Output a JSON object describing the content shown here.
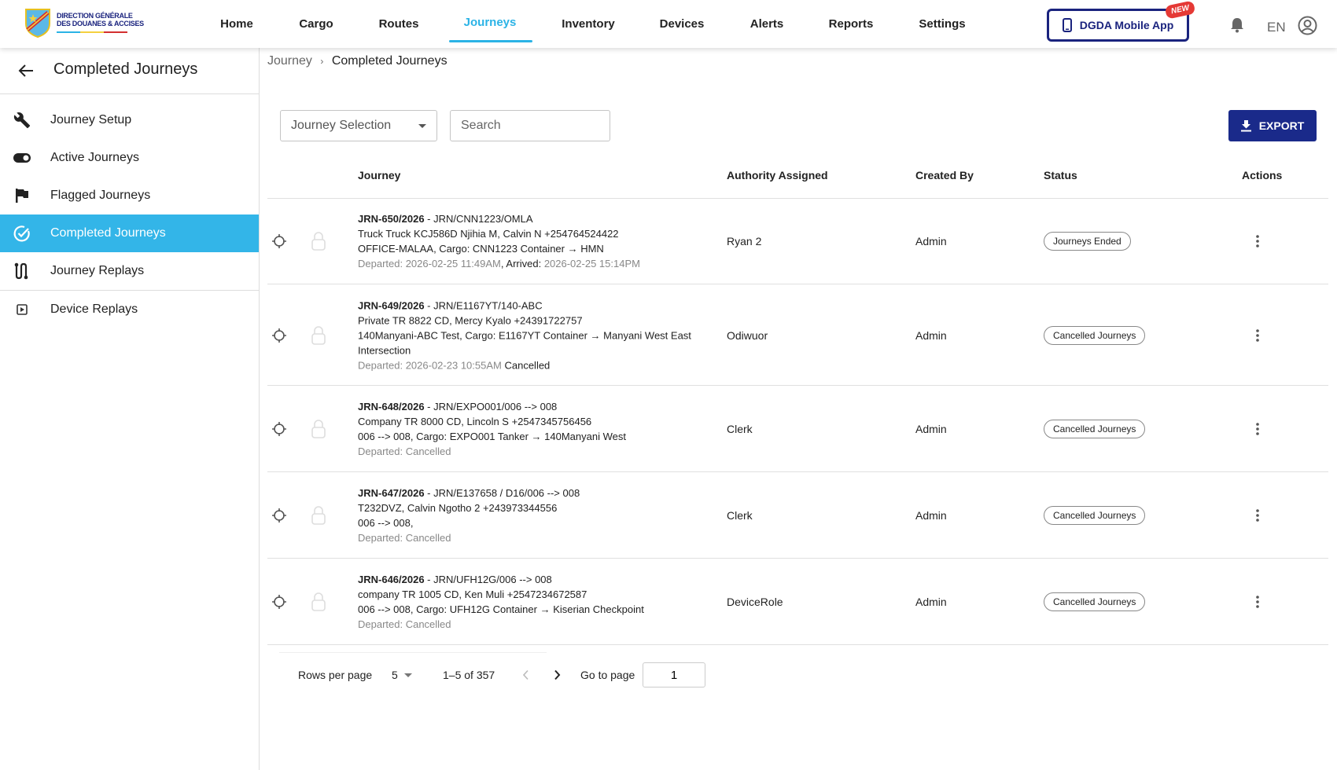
{
  "header": {
    "logo": {
      "line1": "DIRECTION GÉNÉRALE",
      "line2": "DES DOUANES & ACCISES"
    },
    "nav": [
      {
        "label": "Home"
      },
      {
        "label": "Cargo"
      },
      {
        "label": "Routes"
      },
      {
        "label": "Journeys",
        "active": true
      },
      {
        "label": "Inventory"
      },
      {
        "label": "Devices"
      },
      {
        "label": "Alerts"
      },
      {
        "label": "Reports"
      },
      {
        "label": "Settings"
      }
    ],
    "mobile_app_label": "DGDA Mobile App",
    "new_badge": "NEW",
    "language": "EN",
    "accent": "#2bb3e6",
    "brand": "#1a237e"
  },
  "sidebar": {
    "title": "Completed Journeys",
    "items": [
      {
        "label": "Journey Setup",
        "icon": "wrench-icon"
      },
      {
        "label": "Active Journeys",
        "icon": "toggle-icon"
      },
      {
        "label": "Flagged Journeys",
        "icon": "flag-icon"
      },
      {
        "label": "Completed Journeys",
        "icon": "check-circle-icon",
        "active": true
      },
      {
        "label": "Journey Replays",
        "icon": "route-icon"
      },
      {
        "label": "Device Replays",
        "icon": "play-box-icon"
      }
    ]
  },
  "breadcrumb": {
    "parent": "Journey",
    "sep": "›",
    "current": "Completed Journeys"
  },
  "filters": {
    "selection": "Journey Selection",
    "search_placeholder": "Search",
    "export": "EXPORT"
  },
  "table": {
    "columns": {
      "journey": "Journey",
      "authority": "Authority Assigned",
      "created": "Created By",
      "status": "Status",
      "actions": "Actions"
    },
    "rows": [
      {
        "id": "JRN-650/2026",
        "ref": " - JRN/CNN1223/OMLA",
        "line2": "Truck Truck KCJ586D Njihia M, Calvin N +254764524422",
        "line3": "OFFICE-MALAA, Cargo: CNN1223 Container → HMN",
        "dep_label": "Departed: ",
        "dep": "2026-02-25 11:49AM",
        "arr_label": ", Arrived: ",
        "arr": "2026-02-25 15:14PM",
        "authority": "Ryan 2",
        "created": "Admin",
        "status": "Journeys Ended"
      },
      {
        "id": "JRN-649/2026",
        "ref": " - JRN/E1167YT/140-ABC",
        "line2": "Private TR 8822 CD, Mercy Kyalo +24391722757",
        "line3": "140Manyani-ABC Test, Cargo: E1167YT Container → Manyani West East Intersection",
        "dep_label": "Departed: ",
        "dep": "2026-02-23 10:55AM",
        "arr_label": " Cancelled",
        "arr": "",
        "authority": "Odiwuor",
        "created": "Admin",
        "status": "Cancelled Journeys"
      },
      {
        "id": "JRN-648/2026",
        "ref": " - JRN/EXPO001/006 --> 008",
        "line2": "Company TR 8000 CD, Lincoln S +2547345756456",
        "line3": "006 --> 008, Cargo: EXPO001 Tanker → 140Manyani West",
        "dep_label": "Departed: Cancelled",
        "dep": "",
        "arr_label": "",
        "arr": "",
        "authority": "Clerk",
        "created": "Admin",
        "status": "Cancelled Journeys"
      },
      {
        "id": "JRN-647/2026",
        "ref": " - JRN/E137658 / D16/006 --> 008",
        "line2": "T232DVZ, Calvin Ngotho 2 +243973344556",
        "line3": "006 --> 008,",
        "dep_label": "Departed: Cancelled",
        "dep": "",
        "arr_label": "",
        "arr": "",
        "authority": "Clerk",
        "created": "Admin",
        "status": "Cancelled Journeys"
      },
      {
        "id": "JRN-646/2026",
        "ref": " - JRN/UFH12G/006 --> 008",
        "line2": "company TR 1005 CD, Ken Muli +2547234672587",
        "line3": "006 --> 008, Cargo: UFH12G Container → Kiserian Checkpoint",
        "dep_label": "Departed: Cancelled",
        "dep": "",
        "arr_label": "",
        "arr": "",
        "authority": "DeviceRole",
        "created": "Admin",
        "status": "Cancelled Journeys"
      }
    ]
  },
  "pagination": {
    "rows_label": "Rows per page",
    "rows_value": "5",
    "range": "1–5 of 357",
    "goto_label": "Go to page",
    "page": "1"
  }
}
